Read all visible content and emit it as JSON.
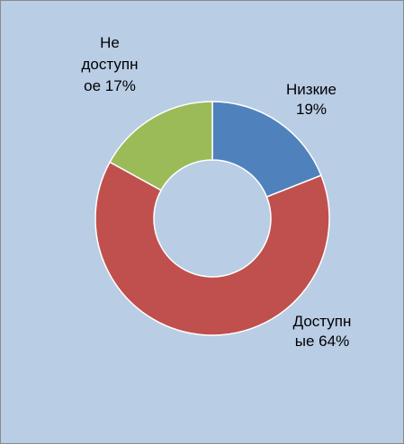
{
  "chart_data": {
    "type": "pie",
    "variant": "doughnut",
    "title": "",
    "legend": "none",
    "background": "#b9cde5",
    "slices": [
      {
        "name": "Низкие",
        "value": 19,
        "color": "#4f81bd",
        "label_lines": [
          "Низкие",
          "19%"
        ]
      },
      {
        "name": "Доступные",
        "value": 64,
        "color": "#c0504d",
        "label_lines": [
          "Доступн",
          "ые 64%"
        ]
      },
      {
        "name": "Не доступное",
        "value": 17,
        "color": "#9bbb59",
        "label_lines": [
          "Не",
          "доступн",
          "ое 17%"
        ]
      }
    ]
  }
}
